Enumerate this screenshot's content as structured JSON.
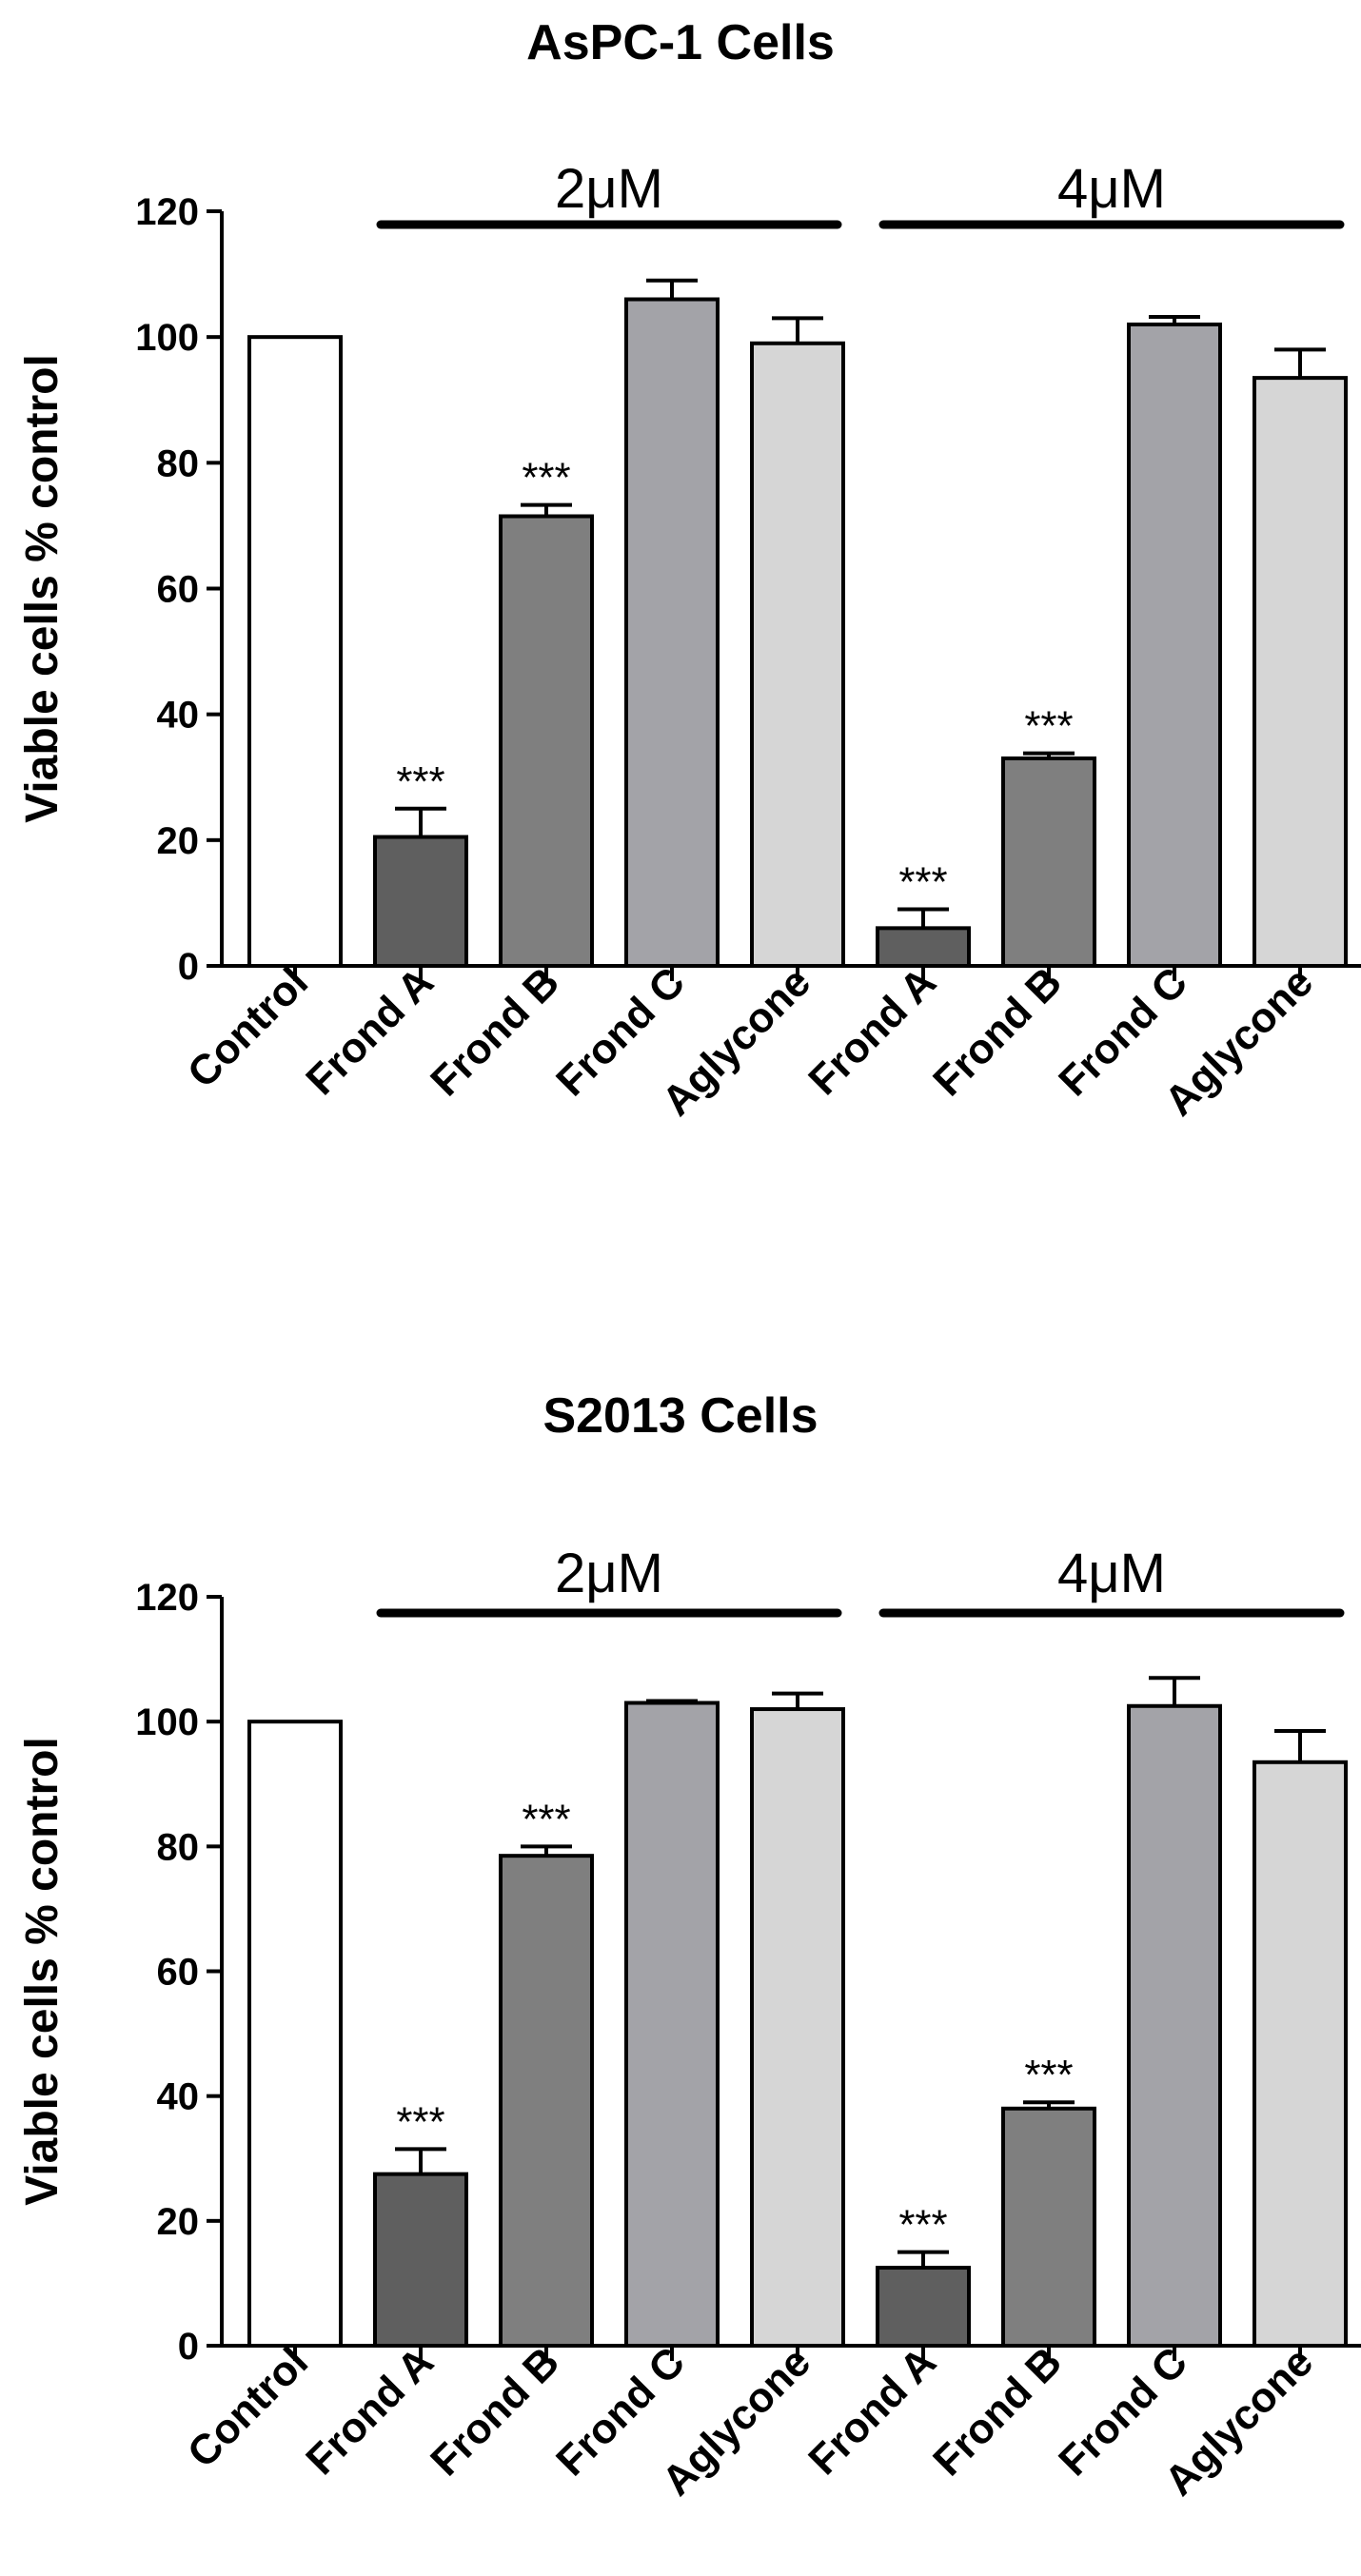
{
  "chart_data": [
    {
      "type": "bar",
      "title": "AsPC-1 Cells",
      "ylabel": "Viable cells % control",
      "ylim": [
        0,
        120
      ],
      "yticks": [
        "0",
        "20",
        "40",
        "60",
        "80",
        "100",
        "120"
      ],
      "categories": [
        "Control",
        "Frond A",
        "Frond B",
        "Frond C",
        "Aglycone",
        "Frond A",
        "Frond B",
        "Frond C",
        "Aglycone"
      ],
      "values": [
        100,
        20.5,
        71.5,
        106,
        99,
        6,
        33,
        102,
        93.5
      ],
      "errors": [
        0,
        4.5,
        1.8,
        3,
        4,
        3,
        0.8,
        1.2,
        4.5
      ],
      "significance": [
        "",
        "***",
        "***",
        "",
        "",
        "***",
        "***",
        "",
        ""
      ],
      "bar_colors": [
        "#ffffff",
        "#5f5f5f",
        "#7f7f7f",
        "#a3a3a8",
        "#d6d6d6",
        "#5f5f5f",
        "#7f7f7f",
        "#a3a3a8",
        "#d6d6d6"
      ],
      "groups": [
        {
          "label": "2μM",
          "from": 1,
          "to": 4
        },
        {
          "label": "4μM",
          "from": 5,
          "to": 8
        }
      ],
      "grid": false,
      "legend": "none"
    },
    {
      "type": "bar",
      "title": "S2013 Cells",
      "ylabel": "Viable cells % control",
      "ylim": [
        0,
        120
      ],
      "yticks": [
        "0",
        "20",
        "40",
        "60",
        "80",
        "100",
        "120"
      ],
      "categories": [
        "Control",
        "Frond A",
        "Frond B",
        "Frond C",
        "Aglycone",
        "Frond A",
        "Frond B",
        "Frond C",
        "Aglycone"
      ],
      "values": [
        100,
        27.5,
        78.5,
        103,
        102,
        12.5,
        38,
        102.5,
        93.5
      ],
      "errors": [
        0,
        4,
        1.5,
        0.3,
        2.5,
        2.5,
        1,
        4.5,
        5
      ],
      "significance": [
        "",
        "***",
        "***",
        "",
        "",
        "***",
        "***",
        "",
        ""
      ],
      "bar_colors": [
        "#ffffff",
        "#5f5f5f",
        "#7f7f7f",
        "#a3a3a8",
        "#d6d6d6",
        "#5f5f5f",
        "#7f7f7f",
        "#a3a3a8",
        "#d6d6d6"
      ],
      "groups": [
        {
          "label": "2μM",
          "from": 1,
          "to": 4
        },
        {
          "label": "4μM",
          "from": 5,
          "to": 8
        }
      ],
      "grid": false,
      "legend": "none"
    }
  ]
}
